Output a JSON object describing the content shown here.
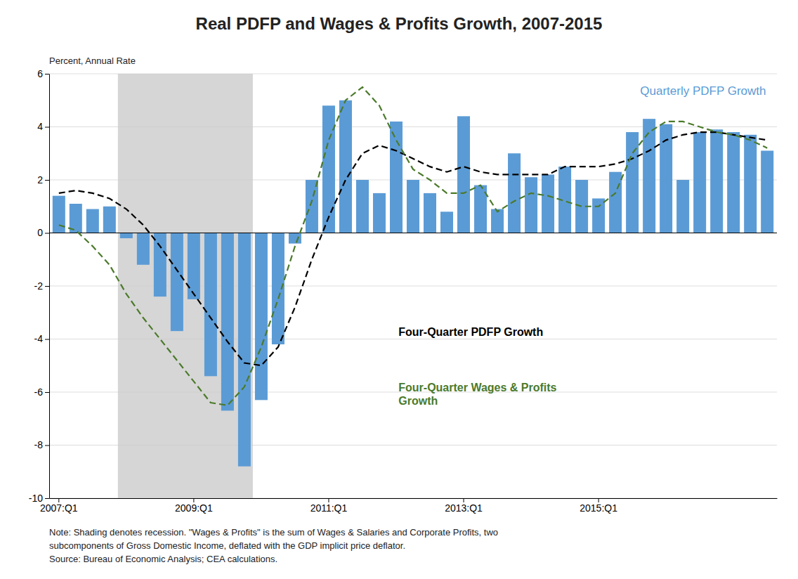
{
  "chart_data": {
    "type": "bar",
    "title": "Real PDFP and Wages & Profits Growth, 2007-2015",
    "y_label": "Percent, Annual Rate",
    "categories": [
      "2007:Q1",
      null,
      null,
      null,
      null,
      null,
      null,
      null,
      "2009:Q1",
      null,
      null,
      null,
      null,
      null,
      null,
      null,
      "2011:Q1",
      null,
      null,
      null,
      null,
      null,
      null,
      null,
      "2013:Q1",
      null,
      null,
      null,
      null,
      null,
      null,
      null,
      "2015:Q1",
      null,
      null,
      null,
      null,
      null,
      null,
      null,
      null,
      null,
      null
    ],
    "series": [
      {
        "name": "Quarterly PDFP Growth",
        "type": "bar",
        "color": "#5B9BD5",
        "values": [
          1.4,
          1.1,
          0.9,
          1.0,
          -0.2,
          -1.2,
          -2.4,
          -3.7,
          -2.5,
          -5.4,
          -6.7,
          -8.8,
          -6.3,
          -4.2,
          -0.4,
          2.0,
          4.8,
          5.0,
          2.0,
          1.5,
          4.2,
          2.0,
          1.5,
          0.8,
          4.4,
          1.8,
          0.9,
          3.0,
          2.1,
          2.2,
          2.5,
          2.0,
          1.3,
          2.3,
          3.8,
          4.3,
          4.1,
          2.0,
          3.8,
          3.9,
          3.8,
          3.7,
          3.1
        ]
      },
      {
        "name": "Four-Quarter PDFP Growth",
        "type": "line",
        "line_style": "dashed",
        "color": "#000000",
        "values": [
          1.5,
          1.6,
          1.5,
          1.3,
          0.9,
          0.3,
          -0.5,
          -1.4,
          -2.3,
          -3.2,
          -4.1,
          -4.9,
          -5.0,
          -4.3,
          -2.8,
          -1.0,
          0.6,
          2.0,
          3.0,
          3.3,
          3.1,
          2.8,
          2.5,
          2.3,
          2.5,
          2.3,
          2.2,
          2.2,
          2.2,
          2.2,
          2.5,
          2.5,
          2.5,
          2.6,
          2.8,
          3.1,
          3.5,
          3.7,
          3.8,
          3.8,
          3.7,
          3.6,
          3.5
        ]
      },
      {
        "name": "Four-Quarter Wages & Profits\nGrowth",
        "type": "line",
        "line_style": "dashed",
        "color": "#4B7A2B",
        "values": [
          0.3,
          0.1,
          -0.5,
          -1.2,
          -2.3,
          -3.2,
          -4.0,
          -4.8,
          -5.6,
          -6.4,
          -6.5,
          -5.8,
          -4.3,
          -2.5,
          -0.5,
          1.2,
          3.5,
          5.0,
          5.5,
          4.8,
          3.5,
          2.4,
          2.0,
          1.5,
          1.5,
          1.8,
          0.8,
          1.2,
          1.5,
          1.4,
          1.2,
          1.0,
          1.0,
          1.5,
          3.0,
          3.8,
          4.2,
          4.2,
          4.0,
          3.8,
          3.7,
          3.5,
          3.2
        ]
      }
    ],
    "recession_shading": {
      "start": 4,
      "end": 11
    },
    "ylim": [
      -10,
      6
    ],
    "yticks": [
      -10,
      -8,
      -6,
      -4,
      -2,
      0,
      2,
      4,
      6
    ],
    "grid": true,
    "notes": [
      "Note: Shading denotes recession. \"Wages & Profits\" is the sum of Wages & Salaries and Corporate Profits, two",
      "subcomponents of Gross Domestic Income, deflated with the GDP implicit price deflator.",
      "Source: Bureau of Economic Analysis; CEA calculations."
    ]
  }
}
